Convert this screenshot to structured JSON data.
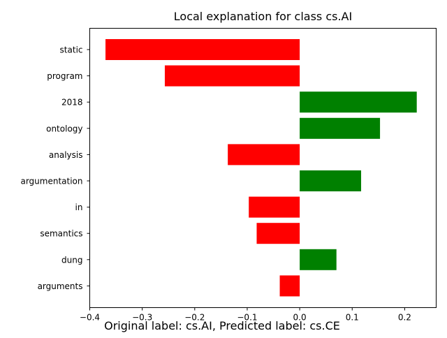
{
  "chart_data": {
    "type": "bar",
    "orientation": "horizontal",
    "title": "Local explanation for class cs.AI",
    "categories": [
      "static",
      "program",
      "2018",
      "ontology",
      "analysis",
      "argumentation",
      "in",
      "semantics",
      "dung",
      "arguments"
    ],
    "values": [
      -0.37,
      -0.257,
      0.223,
      0.153,
      -0.137,
      0.117,
      -0.097,
      -0.082,
      0.07,
      -0.038
    ],
    "xlim": [
      -0.4,
      0.26
    ],
    "xticks": [
      -0.4,
      -0.3,
      -0.2,
      -0.1,
      0.0,
      0.1,
      0.2
    ],
    "xtick_labels": [
      "−0.4",
      "−0.3",
      "−0.2",
      "−0.1",
      "0.0",
      "0.1",
      "0.2"
    ],
    "xlabel": "",
    "ylabel": "",
    "grid": false,
    "positive_color": "#008000",
    "negative_color": "#ff0000"
  },
  "caption": "Original label: cs.AI, Predicted label: cs.CE"
}
